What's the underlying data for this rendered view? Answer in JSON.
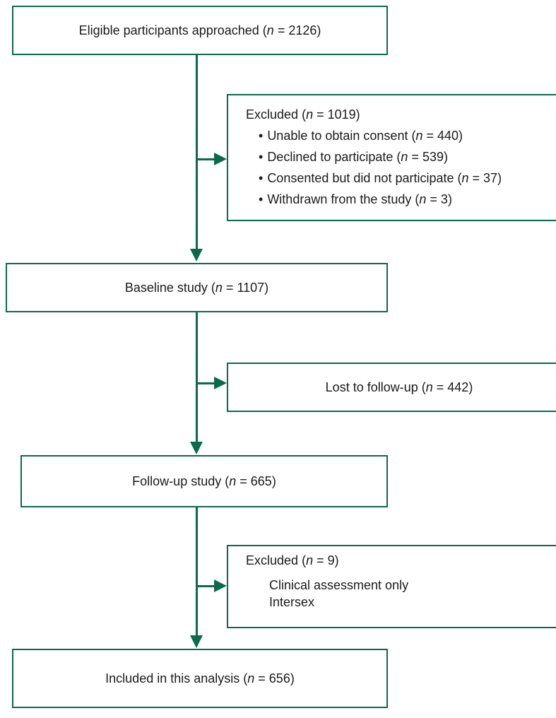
{
  "nodes": {
    "approached": {
      "label": "Eligible participants approached",
      "n": "2126"
    },
    "excluded1": {
      "title": "Excluded",
      "n": "1019",
      "items": [
        {
          "label": "Unable to obtain consent",
          "n": "440"
        },
        {
          "label": "Declined to participate",
          "n": "539"
        },
        {
          "label": "Consented but did not participate",
          "n": "37"
        },
        {
          "label": "Withdrawn from the study",
          "n": "3"
        }
      ]
    },
    "baseline": {
      "label": "Baseline study",
      "n": "1107"
    },
    "lost": {
      "label": "Lost to follow-up",
      "n": "442"
    },
    "followup": {
      "label": "Follow-up study",
      "n": "665"
    },
    "excluded2": {
      "title": "Excluded",
      "n": "9",
      "items": [
        "Clinical assessment only",
        "Intersex"
      ]
    },
    "included": {
      "label": "Included in this analysis",
      "n": "656"
    }
  },
  "colors": {
    "accent": "#0b6a4a"
  }
}
